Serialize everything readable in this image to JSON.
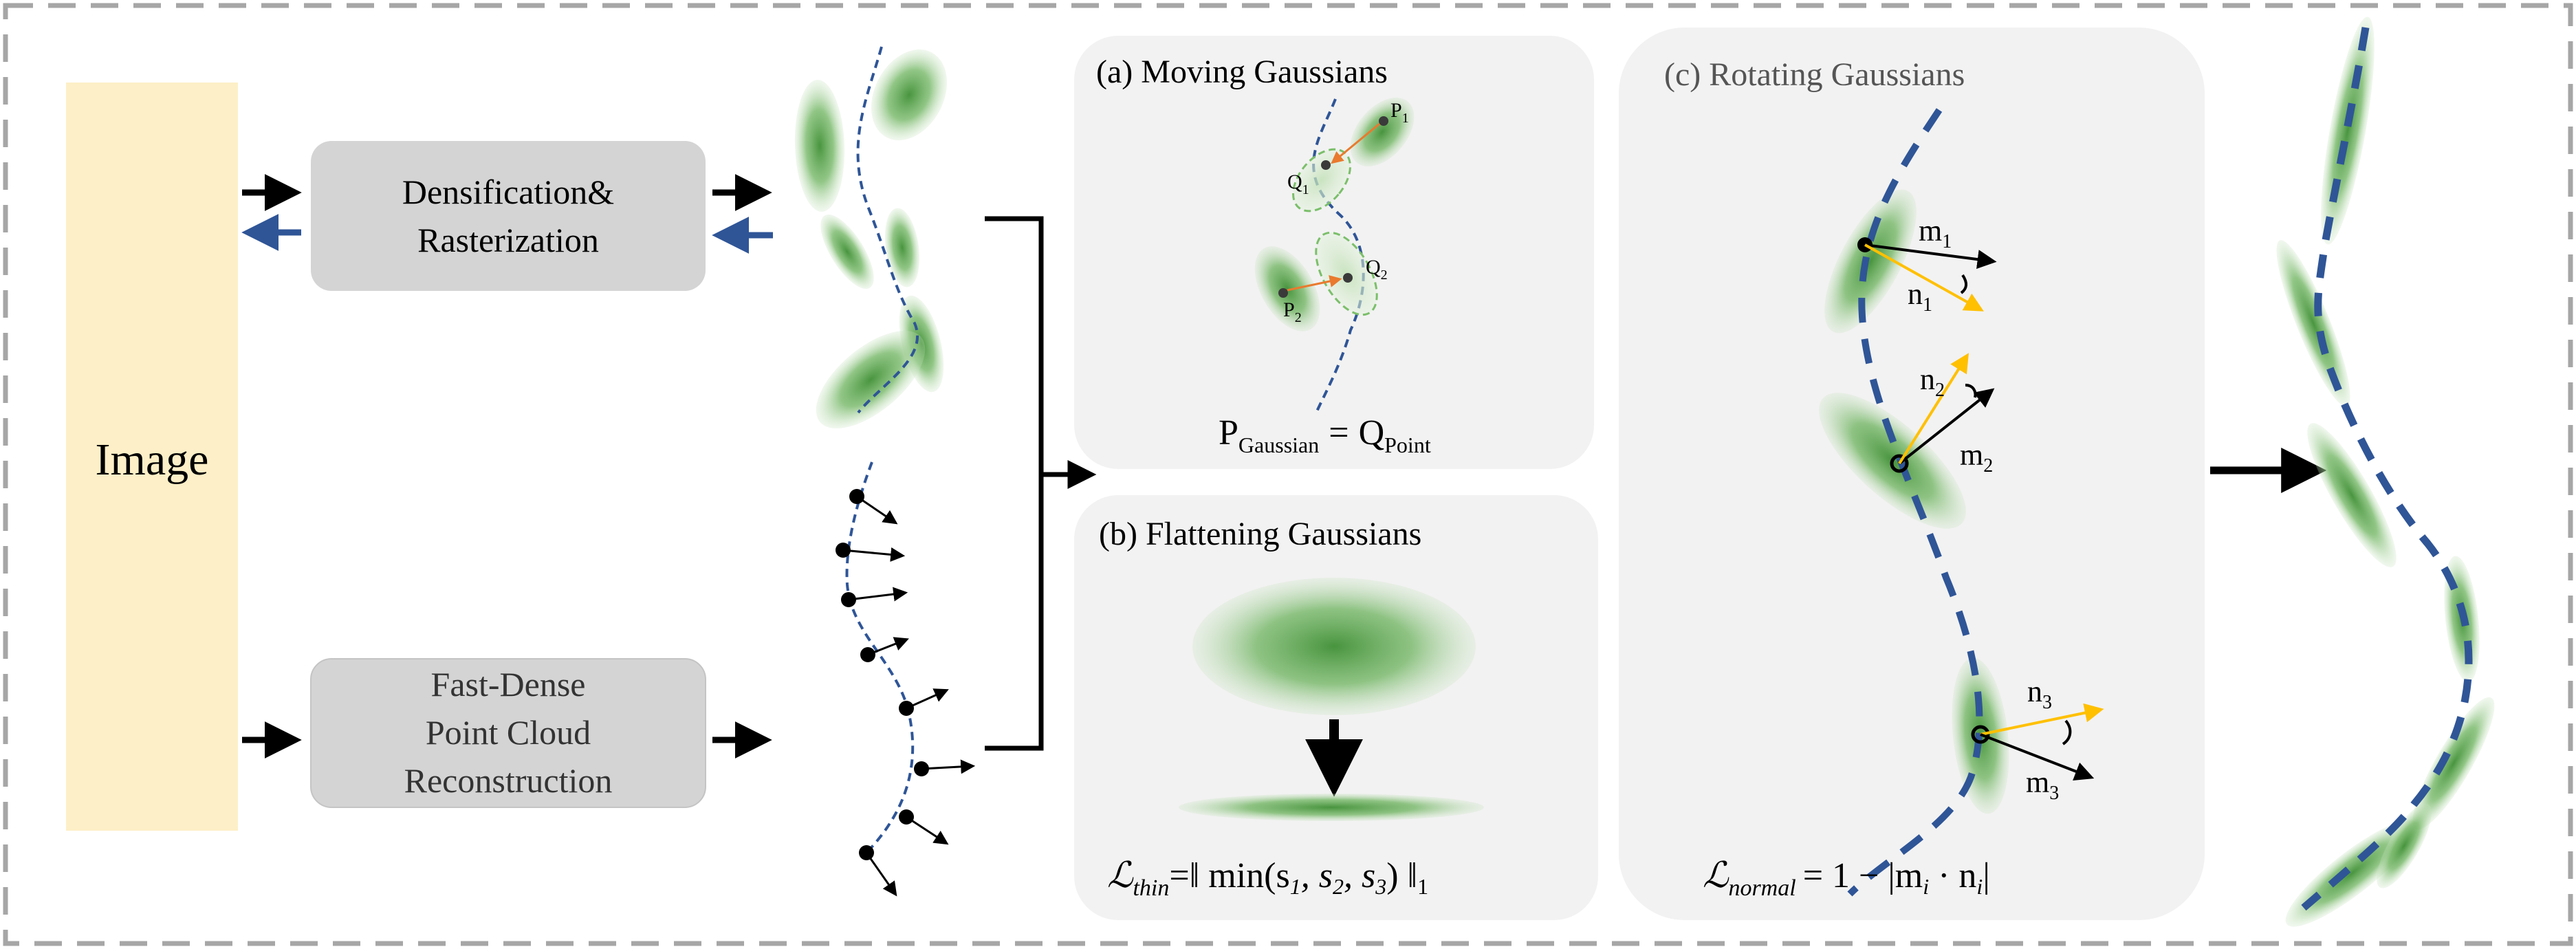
{
  "input": {
    "label": "Image"
  },
  "steps": {
    "densify": {
      "line1": "Densification&",
      "line2": "Rasterization"
    },
    "pointcloud": {
      "line1": "Fast-Dense",
      "line2": "Point Cloud",
      "line3": "Reconstruction"
    }
  },
  "panel_a": {
    "title": "(a) Moving Gaussians",
    "p1": "P",
    "p1_sub": "1",
    "p2": "P",
    "p2_sub": "2",
    "q1": "Q",
    "q1_sub": "1",
    "q2": "Q",
    "q2_sub": "2",
    "eq_lhs": "P",
    "eq_lhs_sub": "Gaussian",
    "eq_op": "=",
    "eq_rhs": "Q",
    "eq_rhs_sub": "Point"
  },
  "panel_b": {
    "title": "(b) Flattening Gaussians",
    "loss_symbol": "ℒ",
    "loss_sub": "thin",
    "loss_body": "=‖ min(s",
    "s1": "1",
    "s2": "2",
    "s3": "3",
    "loss_end_sub": "1"
  },
  "panel_c": {
    "title": "(c) Rotating Gaussians",
    "m1": "m",
    "m1_sub": "1",
    "n1": "n",
    "n1_sub": "1",
    "m2": "m",
    "m2_sub": "2",
    "n2": "n",
    "n2_sub": "2",
    "m3": "m",
    "m3_sub": "3",
    "n3": "n",
    "n3_sub": "3",
    "loss_symbol": "ℒ",
    "loss_sub": "normal",
    "loss_body": "= 1 − |m",
    "loss_i": "i",
    "loss_dot": " · n",
    "loss_end": "|"
  },
  "colors": {
    "image_box": "#fdefc7",
    "step_box": "#d4d4d4",
    "panel_bg": "#f2f2f2",
    "curve": "#2f5597",
    "gaussian": "#5aa54a",
    "normal_arrow": "#ffc000",
    "orange_arrow": "#e97a2e",
    "back_arrow": "#2f5597"
  }
}
